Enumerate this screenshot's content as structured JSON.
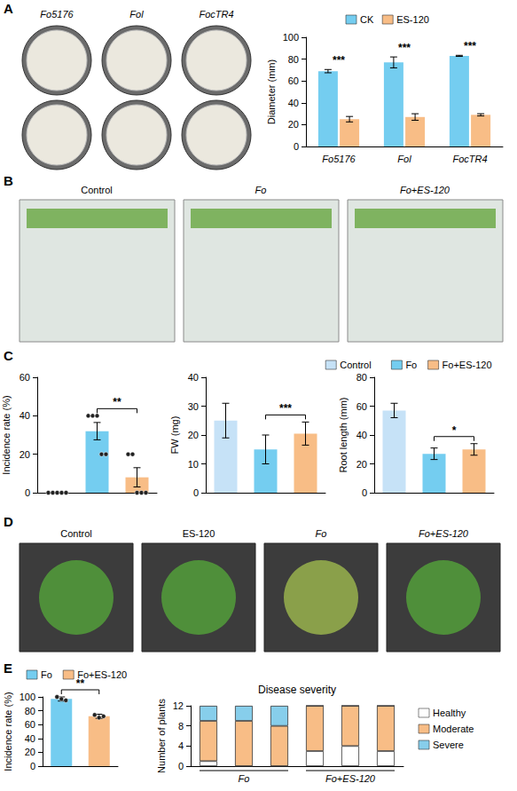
{
  "chart_data": [
    {
      "panel": "A",
      "type": "bar",
      "categories": [
        "Fo5176",
        "Fol",
        "FocTR4"
      ],
      "y_label": "Diameter (mm)",
      "ylim": [
        0,
        100
      ],
      "yticks": [
        0,
        20,
        40,
        60,
        80,
        100
      ],
      "legend": "top",
      "series": [
        {
          "name": "CK",
          "color": "#74cdf0",
          "values": [
            69,
            77,
            83
          ],
          "errors": [
            1.5,
            5,
            0.5
          ]
        },
        {
          "name": "ES-120",
          "color": "#f8bd86",
          "values": [
            25,
            27,
            29
          ],
          "errors": [
            2.5,
            3,
            1
          ]
        }
      ],
      "significance": [
        {
          "category": 0,
          "label": "***"
        },
        {
          "category": 1,
          "label": "***"
        },
        {
          "category": 2,
          "label": "***"
        }
      ]
    },
    {
      "panel": "C",
      "type": "bar",
      "categories": [
        "Control",
        "Fo",
        "Fo+ES-120"
      ],
      "colors": [
        "#c6e2f7",
        "#74cdf0",
        "#f8bd86"
      ],
      "values": [
        0,
        32,
        8
      ],
      "errors": [
        0,
        4.5,
        5
      ],
      "points": [
        [
          0,
          0,
          0,
          0,
          0
        ],
        [
          40,
          40,
          40,
          20,
          20
        ],
        [
          20,
          20,
          0,
          0,
          0
        ]
      ],
      "y_label": "Incidence rate (%)",
      "ylim": [
        0,
        60
      ],
      "yticks": [
        0,
        20,
        40,
        60
      ],
      "tick_labels": "y",
      "significance": [
        {
          "between": [
            1,
            2
          ],
          "label": "**"
        }
      ]
    },
    {
      "panel": "C",
      "type": "bar",
      "categories": [
        "Control",
        "Fo",
        "Fo+ES-120"
      ],
      "colors": [
        "#c6e2f7",
        "#74cdf0",
        "#f8bd86"
      ],
      "values": [
        25,
        15,
        20.5
      ],
      "errors": [
        6,
        5,
        4
      ],
      "y_label": "FW (mg)",
      "ylim": [
        0,
        40
      ],
      "yticks": [
        0,
        10,
        20,
        30,
        40
      ],
      "tick_labels": "y",
      "significance": [
        {
          "between": [
            1,
            2
          ],
          "label": "***"
        }
      ]
    },
    {
      "panel": "C",
      "type": "bar",
      "categories": [
        "Control",
        "Fo",
        "Fo+ES-120"
      ],
      "colors": [
        "#c6e2f7",
        "#74cdf0",
        "#f8bd86"
      ],
      "values": [
        57,
        27,
        30
      ],
      "errors": [
        5,
        4,
        4
      ],
      "y_label": "Root length (mm)",
      "ylim": [
        0,
        80
      ],
      "yticks": [
        0,
        20,
        40,
        60,
        80
      ],
      "tick_labels": "y",
      "legend": "top",
      "significance": [
        {
          "between": [
            1,
            2
          ],
          "label": "*"
        }
      ]
    },
    {
      "panel": "E",
      "type": "bar",
      "categories": [
        "Fo",
        "Fo+ES-120"
      ],
      "colors": [
        "#74cdf0",
        "#f8bd86"
      ],
      "values": [
        97,
        72
      ],
      "errors": [
        3,
        3
      ],
      "points": [
        [
          100,
          97,
          95
        ],
        [
          74,
          70,
          72
        ]
      ],
      "y_label": "Incidence rate (%)",
      "ylim": [
        0,
        100
      ],
      "yticks": [
        0,
        20,
        40,
        60,
        80,
        100
      ],
      "tick_labels": "y",
      "legend": "top",
      "significance": [
        {
          "between": [
            0,
            1
          ],
          "label": "**"
        }
      ]
    },
    {
      "panel": "E",
      "type": "bar",
      "title": "Disease severity",
      "categories": [
        null,
        null,
        null,
        null,
        null,
        null
      ],
      "y_label": "Number of plants",
      "ylim": [
        0,
        12
      ],
      "yticks": [
        0,
        4,
        8,
        12
      ],
      "tick_labels": "y",
      "stacked": true,
      "legend": "right",
      "series": [
        {
          "name": "Healthy",
          "color": "#ffffff",
          "values": [
            1,
            0,
            0,
            3,
            4,
            3
          ]
        },
        {
          "name": "Moderate",
          "color": "#f8bd86",
          "values": [
            8,
            9,
            8,
            9,
            8,
            9
          ]
        },
        {
          "name": "Severe",
          "color": "#87ceeb",
          "values": [
            3,
            3,
            4,
            0,
            0,
            0
          ]
        }
      ],
      "groups": [
        {
          "label": "Fo",
          "size": 3
        },
        {
          "label": "Fo+ES-120",
          "size": 3
        }
      ]
    }
  ],
  "images": [
    {
      "panel": "A",
      "labels": [
        "Fo5176",
        "Fol",
        "FocTR4"
      ]
    },
    {
      "panel": "B",
      "labels": [
        "Control",
        "Fo",
        "Fo+ES-120"
      ]
    },
    {
      "panel": "D",
      "labels": [
        "Control",
        "ES-120",
        "Fo",
        "Fo+ES-120"
      ]
    }
  ]
}
